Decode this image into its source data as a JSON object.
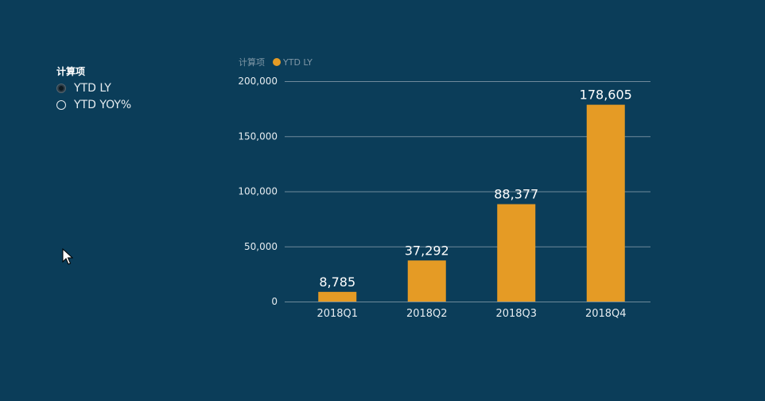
{
  "slicer": {
    "title": "计算项",
    "options": [
      {
        "label": "YTD LY",
        "selected": true
      },
      {
        "label": "YTD YOY%",
        "selected": false
      }
    ]
  },
  "legend": {
    "title": "计算项",
    "item_label": "YTD LY"
  },
  "colors": {
    "background": "#0b3d59",
    "bar": "#e59b25",
    "gridline": "#6f8a9b",
    "text": "#e6ecf0"
  },
  "chart_data": {
    "type": "bar",
    "categories": [
      "2018Q1",
      "2018Q2",
      "2018Q3",
      "2018Q4"
    ],
    "series": [
      {
        "name": "YTD LY",
        "values": [
          8785,
          37292,
          88377,
          178605
        ]
      }
    ],
    "data_labels": [
      "8,785",
      "37,292",
      "88,377",
      "178,605"
    ],
    "ylim": [
      0,
      200000
    ],
    "yticks": [
      0,
      50000,
      100000,
      150000,
      200000
    ],
    "ytick_labels": [
      "0",
      "50,000",
      "100,000",
      "150,000",
      "200,000"
    ],
    "grid": true,
    "legend_position": "top-left"
  }
}
